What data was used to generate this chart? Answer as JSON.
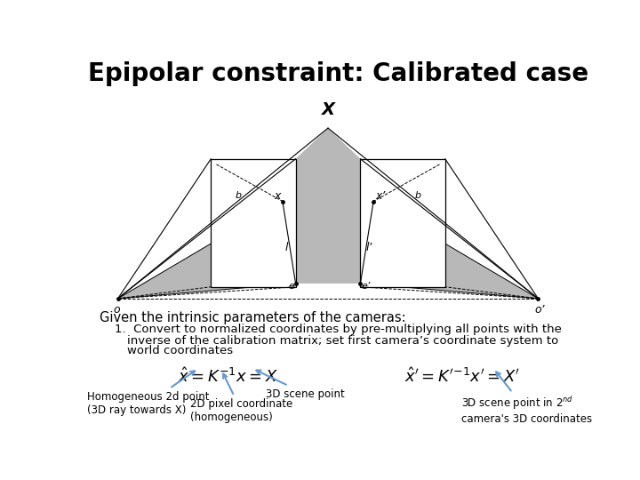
{
  "title": "Epipolar constraint: Calibrated case",
  "title_fontsize": 20,
  "bg_color": "#ffffff",
  "gray_fill": "#b8b8b8",
  "line_color": "#000000",
  "arrow_color": "#6699cc",
  "text_color": "#000000",
  "given_text": "Given the intrinsic parameters of the cameras:",
  "bullet_text": "Convert to normalized coordinates by pre-multiplying all points with the\ninverse of the calibration matrix; set first camera’s coordinate system to\nworld coordinates",
  "eq1": "$\\hat{x} = K^{-1}x = X$",
  "eq2": "$\\hat{x}' = K'^{-1}x' = X'$",
  "label_homo": "Homogeneous 2d point\n(3D ray towards X)",
  "label_2dpix": "2D pixel coordinate\n(homogeneous)",
  "label_3dscene": "3D scene point",
  "label_3dprime": "3D scene point in 2$^{nd}$\ncamera's 3D coordinates",
  "X_label": "X",
  "x_label": "x",
  "xp_label": "x’",
  "o_label": "o",
  "op_label": "o’",
  "e_label": "e",
  "ep_label": "e’",
  "l_label": "l",
  "lp_label": "l’",
  "b_label": "b"
}
